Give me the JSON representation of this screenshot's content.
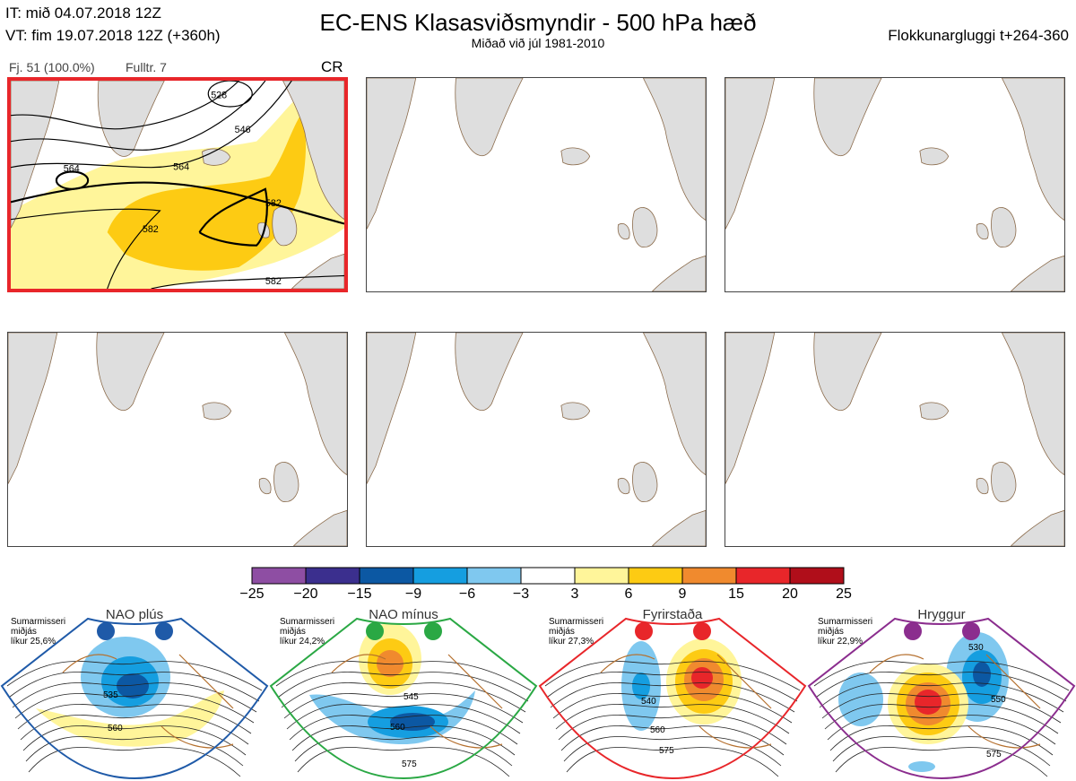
{
  "header": {
    "issue_time": "IT: mið 04.07.2018 12Z",
    "valid_time": "VT: fim 19.07.2018 12Z  (+360h)",
    "title": "EC-ENS Klasasviðsmyndir - 500 hPa hæð",
    "subtitle": "Miðað við júl 1981-2010",
    "window": "Flokkunargluggi t+264-360"
  },
  "chart_data": {
    "type": "heatmap",
    "panels": [
      {
        "header_left": "Fj. 51 (100.0%)",
        "header_mid": "Fulltr. 7",
        "regime": "CR",
        "selected": true,
        "contour_labels": [
          "564",
          "546",
          "528",
          "564",
          "582",
          "582",
          "582"
        ]
      },
      {
        "header_left": "",
        "header_mid": "",
        "regime": "",
        "selected": false,
        "contour_labels": []
      },
      {
        "header_left": "",
        "header_mid": "",
        "regime": "",
        "selected": false,
        "contour_labels": []
      },
      {
        "header_left": "",
        "header_mid": "",
        "regime": "",
        "selected": false,
        "contour_labels": []
      },
      {
        "header_left": "",
        "header_mid": "",
        "regime": "",
        "selected": false,
        "contour_labels": []
      },
      {
        "header_left": "",
        "header_mid": "",
        "regime": "",
        "selected": false,
        "contour_labels": []
      }
    ],
    "colorbar": {
      "ticks": [
        "−25",
        "−20",
        "−15",
        "−9",
        "−6",
        "−3",
        "3",
        "6",
        "9",
        "15",
        "20",
        "25"
      ],
      "colors": [
        "#8e4ea3",
        "#3b2f8e",
        "#0c58a3",
        "#159ee0",
        "#7fc8ef",
        "#ffffff",
        "#fff59a",
        "#fdcb13",
        "#f08a2e",
        "#e8262a",
        "#b00e1a"
      ]
    },
    "regimes": [
      {
        "name": "NAO plús",
        "color": "#1f5aa8",
        "desc": "Sumarmisseri\nmiðjás\nlíkur 25,6%",
        "probability": 25.6,
        "contour_labels": [
          "535",
          "560"
        ]
      },
      {
        "name": "NAO mínus",
        "color": "#2aa844",
        "desc": "Sumarmisseri\nmiðjás\nlíkur 24,2%",
        "probability": 24.2,
        "contour_labels": [
          "545",
          "560",
          "575"
        ]
      },
      {
        "name": "Fyrirstaða",
        "color": "#e8262a",
        "desc": "Sumarmisseri\nmiðjás\nlíkur 27,3%",
        "probability": 27.3,
        "contour_labels": [
          "540",
          "560",
          "575"
        ]
      },
      {
        "name": "Hryggur",
        "color": "#8b2d8e",
        "desc": "Sumarmisseri\nmiðjás\nlíkur 22,9%",
        "probability": 22.9,
        "contour_labels": [
          "530",
          "550",
          "575"
        ]
      }
    ]
  }
}
